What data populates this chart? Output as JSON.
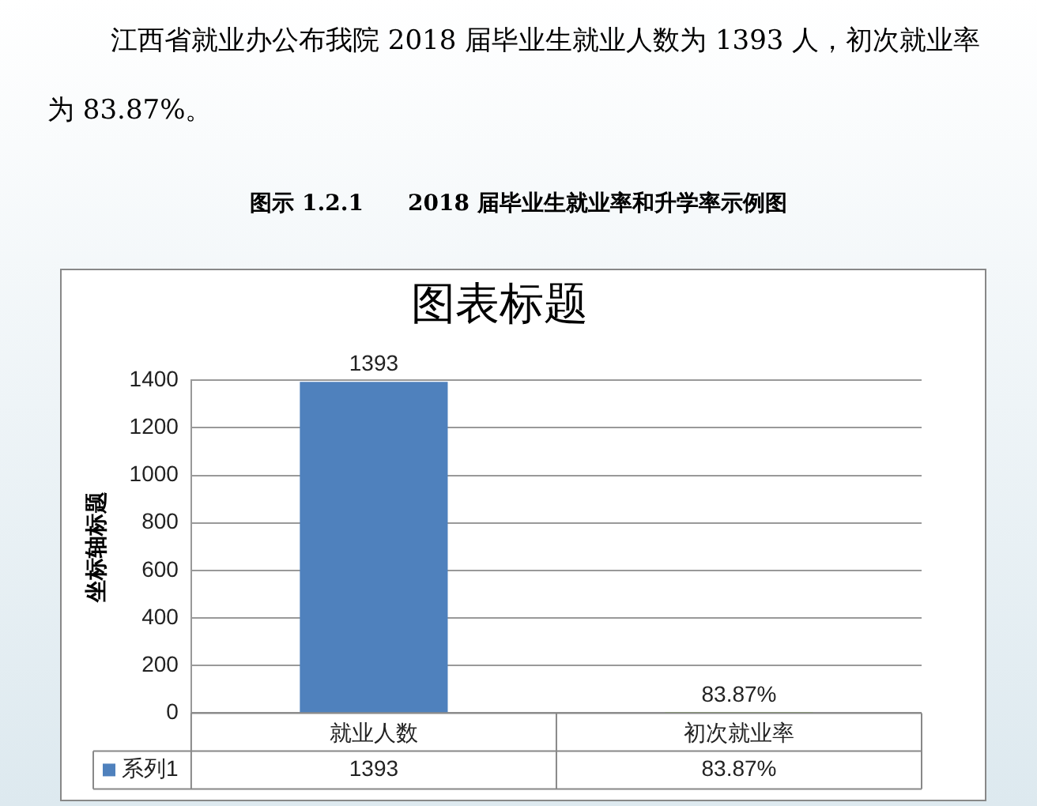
{
  "chart_data": {
    "type": "bar",
    "title": "图表标题",
    "ylabel": "坐标轴标题",
    "annotations": [
      "江西省就业办公布我院 2018 届毕业生就业人数为 1393 人，初次就业率为 83.87%。",
      "图示 1.2.1　　2018 届毕业生就业率和升学率示例图"
    ],
    "categories": [
      "就业人数",
      "初次就业率"
    ],
    "series": [
      {
        "name": "系列1",
        "colors": [
          "#4f81bd",
          "#77a33c"
        ],
        "values": [
          1393,
          0.8387
        ],
        "value_labels": [
          "1393",
          "83.87%"
        ]
      }
    ],
    "ylim": [
      0,
      1400
    ],
    "yticks": [
      0,
      200,
      400,
      600,
      800,
      1000,
      1200,
      1400
    ],
    "grid": "y",
    "legend": "bottom left"
  }
}
